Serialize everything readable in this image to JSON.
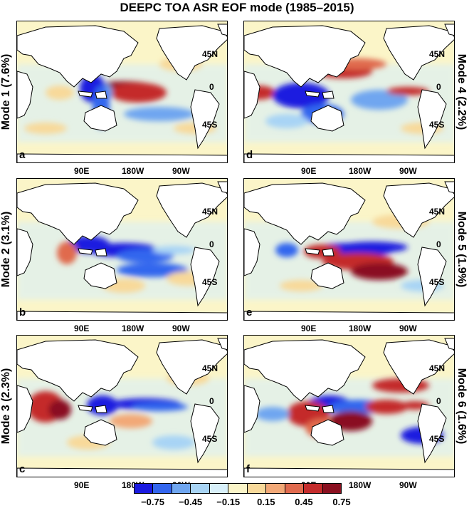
{
  "title": "DEEPC TOA ASR EOF mode (1985–2015)",
  "panels": [
    {
      "letter": "a",
      "mode_label": "Mode 1 (7.6%)",
      "pattern": "mode1"
    },
    {
      "letter": "d",
      "mode_label": "Mode 4 (2.2%)",
      "pattern": "mode4"
    },
    {
      "letter": "b",
      "mode_label": "Mode 2 (3.1%)",
      "pattern": "mode2"
    },
    {
      "letter": "e",
      "mode_label": "Mode 5 (1.9%)",
      "pattern": "mode5"
    },
    {
      "letter": "c",
      "mode_label": "Mode 3 (2.3%)",
      "pattern": "mode3"
    },
    {
      "letter": "f",
      "mode_label": "Mode 6 (1.6%)",
      "pattern": "mode6"
    }
  ],
  "lon_ticks": [
    "90E",
    "180W",
    "90W"
  ],
  "lat_ticks": [
    "45N",
    "0",
    "45S"
  ],
  "colorbar": {
    "tick_labels": [
      "−0.75",
      "−0.45",
      "−0.15",
      "0.15",
      "0.45",
      "0.75"
    ],
    "colors": [
      "#1a1ae0",
      "#3366ee",
      "#6fa6f0",
      "#a8d4f5",
      "#d8f0fa",
      "#fbf5c8",
      "#f8d99a",
      "#f2a877",
      "#e06a4e",
      "#c42c2c",
      "#8a1020"
    ]
  }
}
